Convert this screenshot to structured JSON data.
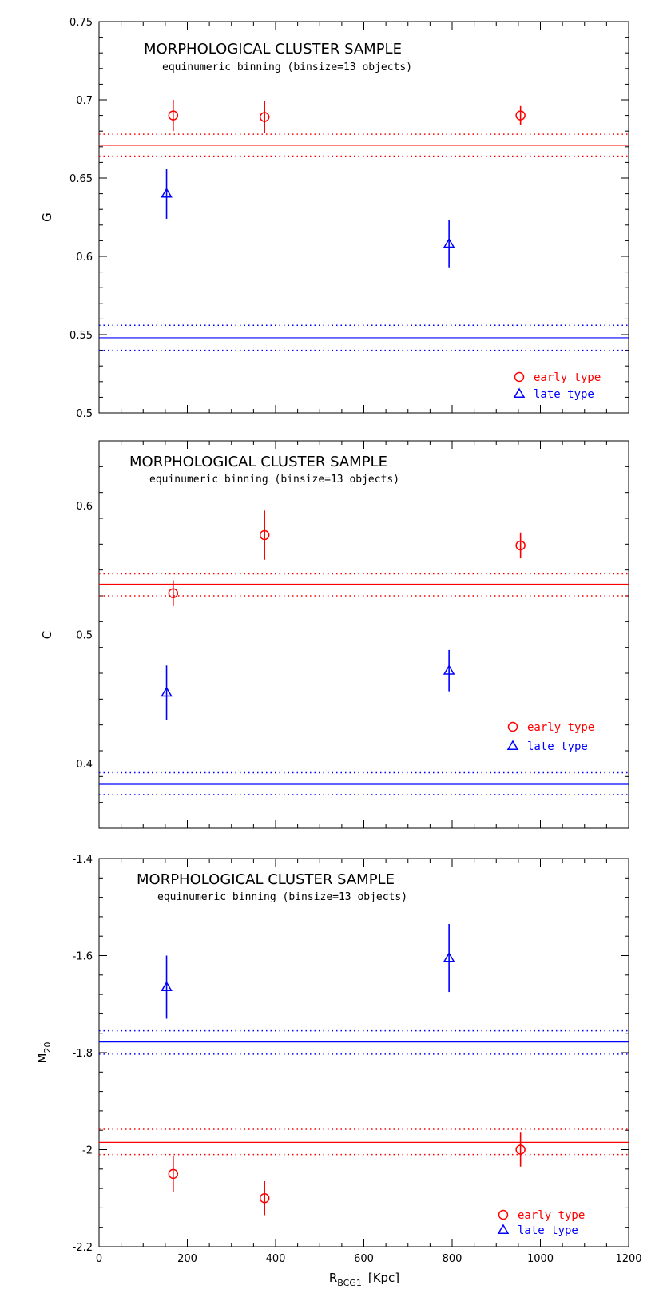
{
  "chart_data": [
    {
      "type": "scatter",
      "title": "MORPHOLOGICAL CLUSTER SAMPLE",
      "subtitle": "equinumeric binning (binsize=13 objects)",
      "ylabel": "G",
      "xlim": [
        0,
        1200
      ],
      "ylim": [
        0.5,
        0.75
      ],
      "yticks": [
        0.5,
        0.55,
        0.6,
        0.65,
        0.7,
        0.75
      ],
      "ytick_labels": [
        "0.5",
        "0.55",
        "0.6",
        "0.65",
        "0.7",
        "0.75"
      ],
      "legend_position": "bottom-right",
      "series": [
        {
          "name": "early type",
          "marker": "circle",
          "color": "#ff0000",
          "x": [
            168,
            375,
            955
          ],
          "y": [
            0.69,
            0.689,
            0.69
          ],
          "yerr": [
            0.01,
            0.01,
            0.006
          ],
          "mean": 0.671,
          "mean_err": [
            0.664,
            0.678
          ]
        },
        {
          "name": "late type",
          "marker": "triangle",
          "color": "#0000ff",
          "x": [
            153,
            793
          ],
          "y": [
            0.64,
            0.608
          ],
          "yerr": [
            0.016,
            0.015
          ],
          "mean": 0.548,
          "mean_err": [
            0.54,
            0.556
          ]
        }
      ]
    },
    {
      "type": "scatter",
      "title": "MORPHOLOGICAL CLUSTER SAMPLE",
      "subtitle": "equinumeric binning (binsize=13 objects)",
      "ylabel": "C",
      "xlim": [
        0,
        1200
      ],
      "ylim": [
        0.35,
        0.65
      ],
      "yticks": [
        0.4,
        0.5,
        0.6
      ],
      "ytick_labels": [
        "0.4",
        "0.5",
        "0.6"
      ],
      "legend_position": "bottom-right",
      "series": [
        {
          "name": "early type",
          "marker": "circle",
          "color": "#ff0000",
          "x": [
            168,
            375,
            955
          ],
          "y": [
            0.532,
            0.577,
            0.569
          ],
          "yerr": [
            0.01,
            0.019,
            0.01
          ],
          "mean": 0.539,
          "mean_err": [
            0.53,
            0.547
          ]
        },
        {
          "name": "late type",
          "marker": "triangle",
          "color": "#0000ff",
          "x": [
            153,
            793
          ],
          "y": [
            0.455,
            0.472
          ],
          "yerr": [
            0.021,
            0.016
          ],
          "mean": 0.384,
          "mean_err": [
            0.376,
            0.393
          ]
        }
      ]
    },
    {
      "type": "scatter",
      "title": "MORPHOLOGICAL CLUSTER SAMPLE",
      "subtitle": "equinumeric binning (binsize=13 objects)",
      "ylabel": "M",
      "ylabel_sub": "20",
      "xlabel": "R",
      "xlabel_sub": "BCG1",
      "xlabel_unit": "[Kpc]",
      "xlim": [
        0,
        1200
      ],
      "ylim": [
        -2.2,
        -1.4
      ],
      "yticks": [
        -2.2,
        -2,
        -1.8,
        -1.6,
        -1.4
      ],
      "ytick_labels": [
        "-2.2",
        "-2",
        "-1.8",
        "-1.6",
        "-1.4"
      ],
      "xticks": [
        0,
        200,
        400,
        600,
        800,
        1000,
        1200
      ],
      "xtick_labels": [
        "0",
        "200",
        "400",
        "600",
        "800",
        "1000",
        "1200"
      ],
      "legend_position": "bottom-right",
      "series": [
        {
          "name": "early type",
          "marker": "circle",
          "color": "#ff0000",
          "x": [
            168,
            375,
            955
          ],
          "y": [
            -2.05,
            -2.1,
            -2.0
          ],
          "yerr": [
            0.037,
            0.035,
            0.035
          ],
          "mean": -1.985,
          "mean_err": [
            -2.01,
            -1.958
          ]
        },
        {
          "name": "late type",
          "marker": "triangle",
          "color": "#0000ff",
          "x": [
            153,
            793
          ],
          "y": [
            -1.665,
            -1.605
          ],
          "yerr": [
            0.065,
            0.07
          ],
          "mean": -1.778,
          "mean_err": [
            -1.803,
            -1.755
          ]
        }
      ]
    }
  ]
}
